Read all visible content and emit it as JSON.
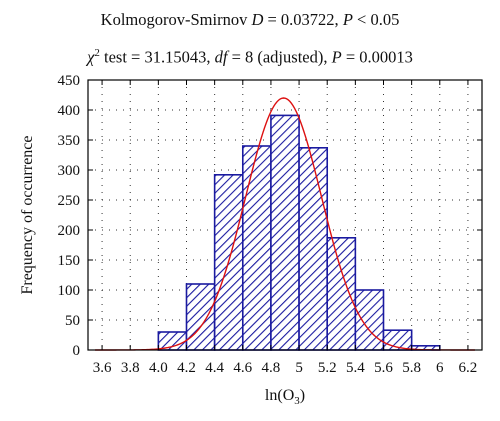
{
  "chart_data": {
    "type": "bar",
    "title_lines": [
      {
        "pre": "Kolmogorov-Smirnov ",
        "var1": "D",
        "mid1": " = 0.03722, ",
        "var2": "P",
        "post": " < 0.05"
      },
      {
        "pre": "χ",
        "sup": "2",
        "mid1": " test = 31.15043, ",
        "var1": "df",
        "mid2": " = 8 (adjusted), ",
        "var2": "P",
        "post": " = 0.00013"
      }
    ],
    "xlabel_parts": {
      "pre": "ln(O",
      "sub": "3",
      "post": ")"
    },
    "ylabel": "Frequency of occurrence",
    "xlim": [
      3.5,
      6.3
    ],
    "ylim": [
      0,
      450
    ],
    "xticks": [
      3.6,
      3.8,
      4.0,
      4.2,
      4.4,
      4.6,
      4.8,
      5.0,
      5.2,
      5.4,
      5.6,
      5.8,
      6.0,
      6.2
    ],
    "xtick_labels": [
      "3.6",
      "3.8",
      "4.0",
      "4.2",
      "4.4",
      "4.6",
      "4.8",
      "5",
      "5.2",
      "5.4",
      "5.6",
      "5.8",
      "6",
      "6.2"
    ],
    "yticks": [
      0,
      50,
      100,
      150,
      200,
      250,
      300,
      350,
      400,
      450
    ],
    "ytick_labels": [
      "0",
      "50",
      "100",
      "150",
      "200",
      "250",
      "300",
      "350",
      "400",
      "450"
    ],
    "bins": [
      {
        "from": 4.0,
        "to": 4.2,
        "value": 30
      },
      {
        "from": 4.2,
        "to": 4.4,
        "value": 110
      },
      {
        "from": 4.4,
        "to": 4.6,
        "value": 292
      },
      {
        "from": 4.6,
        "to": 4.8,
        "value": 340
      },
      {
        "from": 4.8,
        "to": 5.0,
        "value": 391
      },
      {
        "from": 5.0,
        "to": 5.2,
        "value": 337
      },
      {
        "from": 5.2,
        "to": 5.4,
        "value": 187
      },
      {
        "from": 5.4,
        "to": 5.6,
        "value": 100
      },
      {
        "from": 5.6,
        "to": 5.8,
        "value": 33
      },
      {
        "from": 5.8,
        "to": 6.0,
        "value": 7
      }
    ],
    "fit_curve": {
      "type": "normal",
      "mean": 4.89,
      "sd": 0.27,
      "peak": 420,
      "color": "#dd1111"
    },
    "bar_color": "#1a1aa0",
    "hatch": "diagonal",
    "grid": true,
    "grid_style": "dotted"
  }
}
